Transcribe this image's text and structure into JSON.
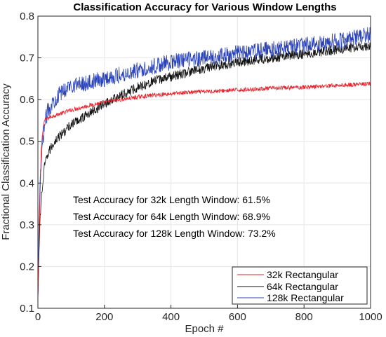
{
  "chart_data": {
    "type": "line",
    "title": "Classification Accuracy for Various Window Lengths",
    "xlabel": "Epoch #",
    "ylabel": "Fractional Classification Accuracy",
    "xlim": [
      0,
      1000
    ],
    "ylim": [
      0.1,
      0.8
    ],
    "xticks": [
      "0",
      "200",
      "400",
      "600",
      "800",
      "1000"
    ],
    "yticks": [
      "0.1",
      "0.2",
      "0.3",
      "0.4",
      "0.5",
      "0.6",
      "0.7",
      "0.8"
    ],
    "grid": true,
    "legend_position": "bottom-right",
    "annotations": [
      "Test Accuracy for 32k Length Window: 61.5%",
      "Test Accuracy for 64k Length Window: 68.9%",
      "Test Accuracy for 128k Length Window: 73.2%"
    ],
    "series": [
      {
        "name": "32k Rectangular",
        "color": "#e8202a",
        "x": [
          0,
          3,
          6,
          10,
          15,
          20,
          30,
          50,
          75,
          100,
          150,
          200,
          250,
          300,
          350,
          400,
          450,
          500,
          600,
          700,
          800,
          900,
          1000
        ],
        "y": [
          0.12,
          0.23,
          0.35,
          0.48,
          0.53,
          0.55,
          0.556,
          0.562,
          0.568,
          0.575,
          0.585,
          0.594,
          0.6,
          0.606,
          0.611,
          0.614,
          0.617,
          0.619,
          0.623,
          0.627,
          0.63,
          0.634,
          0.638
        ]
      },
      {
        "name": "64k Rectangular",
        "color": "#111111",
        "x": [
          0,
          3,
          6,
          10,
          15,
          20,
          30,
          50,
          75,
          100,
          150,
          200,
          250,
          300,
          350,
          400,
          450,
          500,
          600,
          700,
          800,
          900,
          1000
        ],
        "y": [
          0.12,
          0.22,
          0.3,
          0.36,
          0.4,
          0.44,
          0.47,
          0.5,
          0.52,
          0.54,
          0.565,
          0.59,
          0.61,
          0.63,
          0.645,
          0.655,
          0.665,
          0.675,
          0.69,
          0.7,
          0.71,
          0.72,
          0.73
        ]
      },
      {
        "name": "128k Rectangular",
        "color": "#2b43b8",
        "x": [
          0,
          3,
          6,
          10,
          15,
          20,
          30,
          50,
          75,
          100,
          150,
          200,
          250,
          300,
          350,
          400,
          450,
          500,
          600,
          700,
          800,
          900,
          1000
        ],
        "y": [
          0.12,
          0.3,
          0.38,
          0.45,
          0.5,
          0.54,
          0.575,
          0.6,
          0.62,
          0.635,
          0.64,
          0.65,
          0.66,
          0.67,
          0.68,
          0.69,
          0.695,
          0.7,
          0.71,
          0.72,
          0.73,
          0.74,
          0.755
        ]
      }
    ]
  }
}
